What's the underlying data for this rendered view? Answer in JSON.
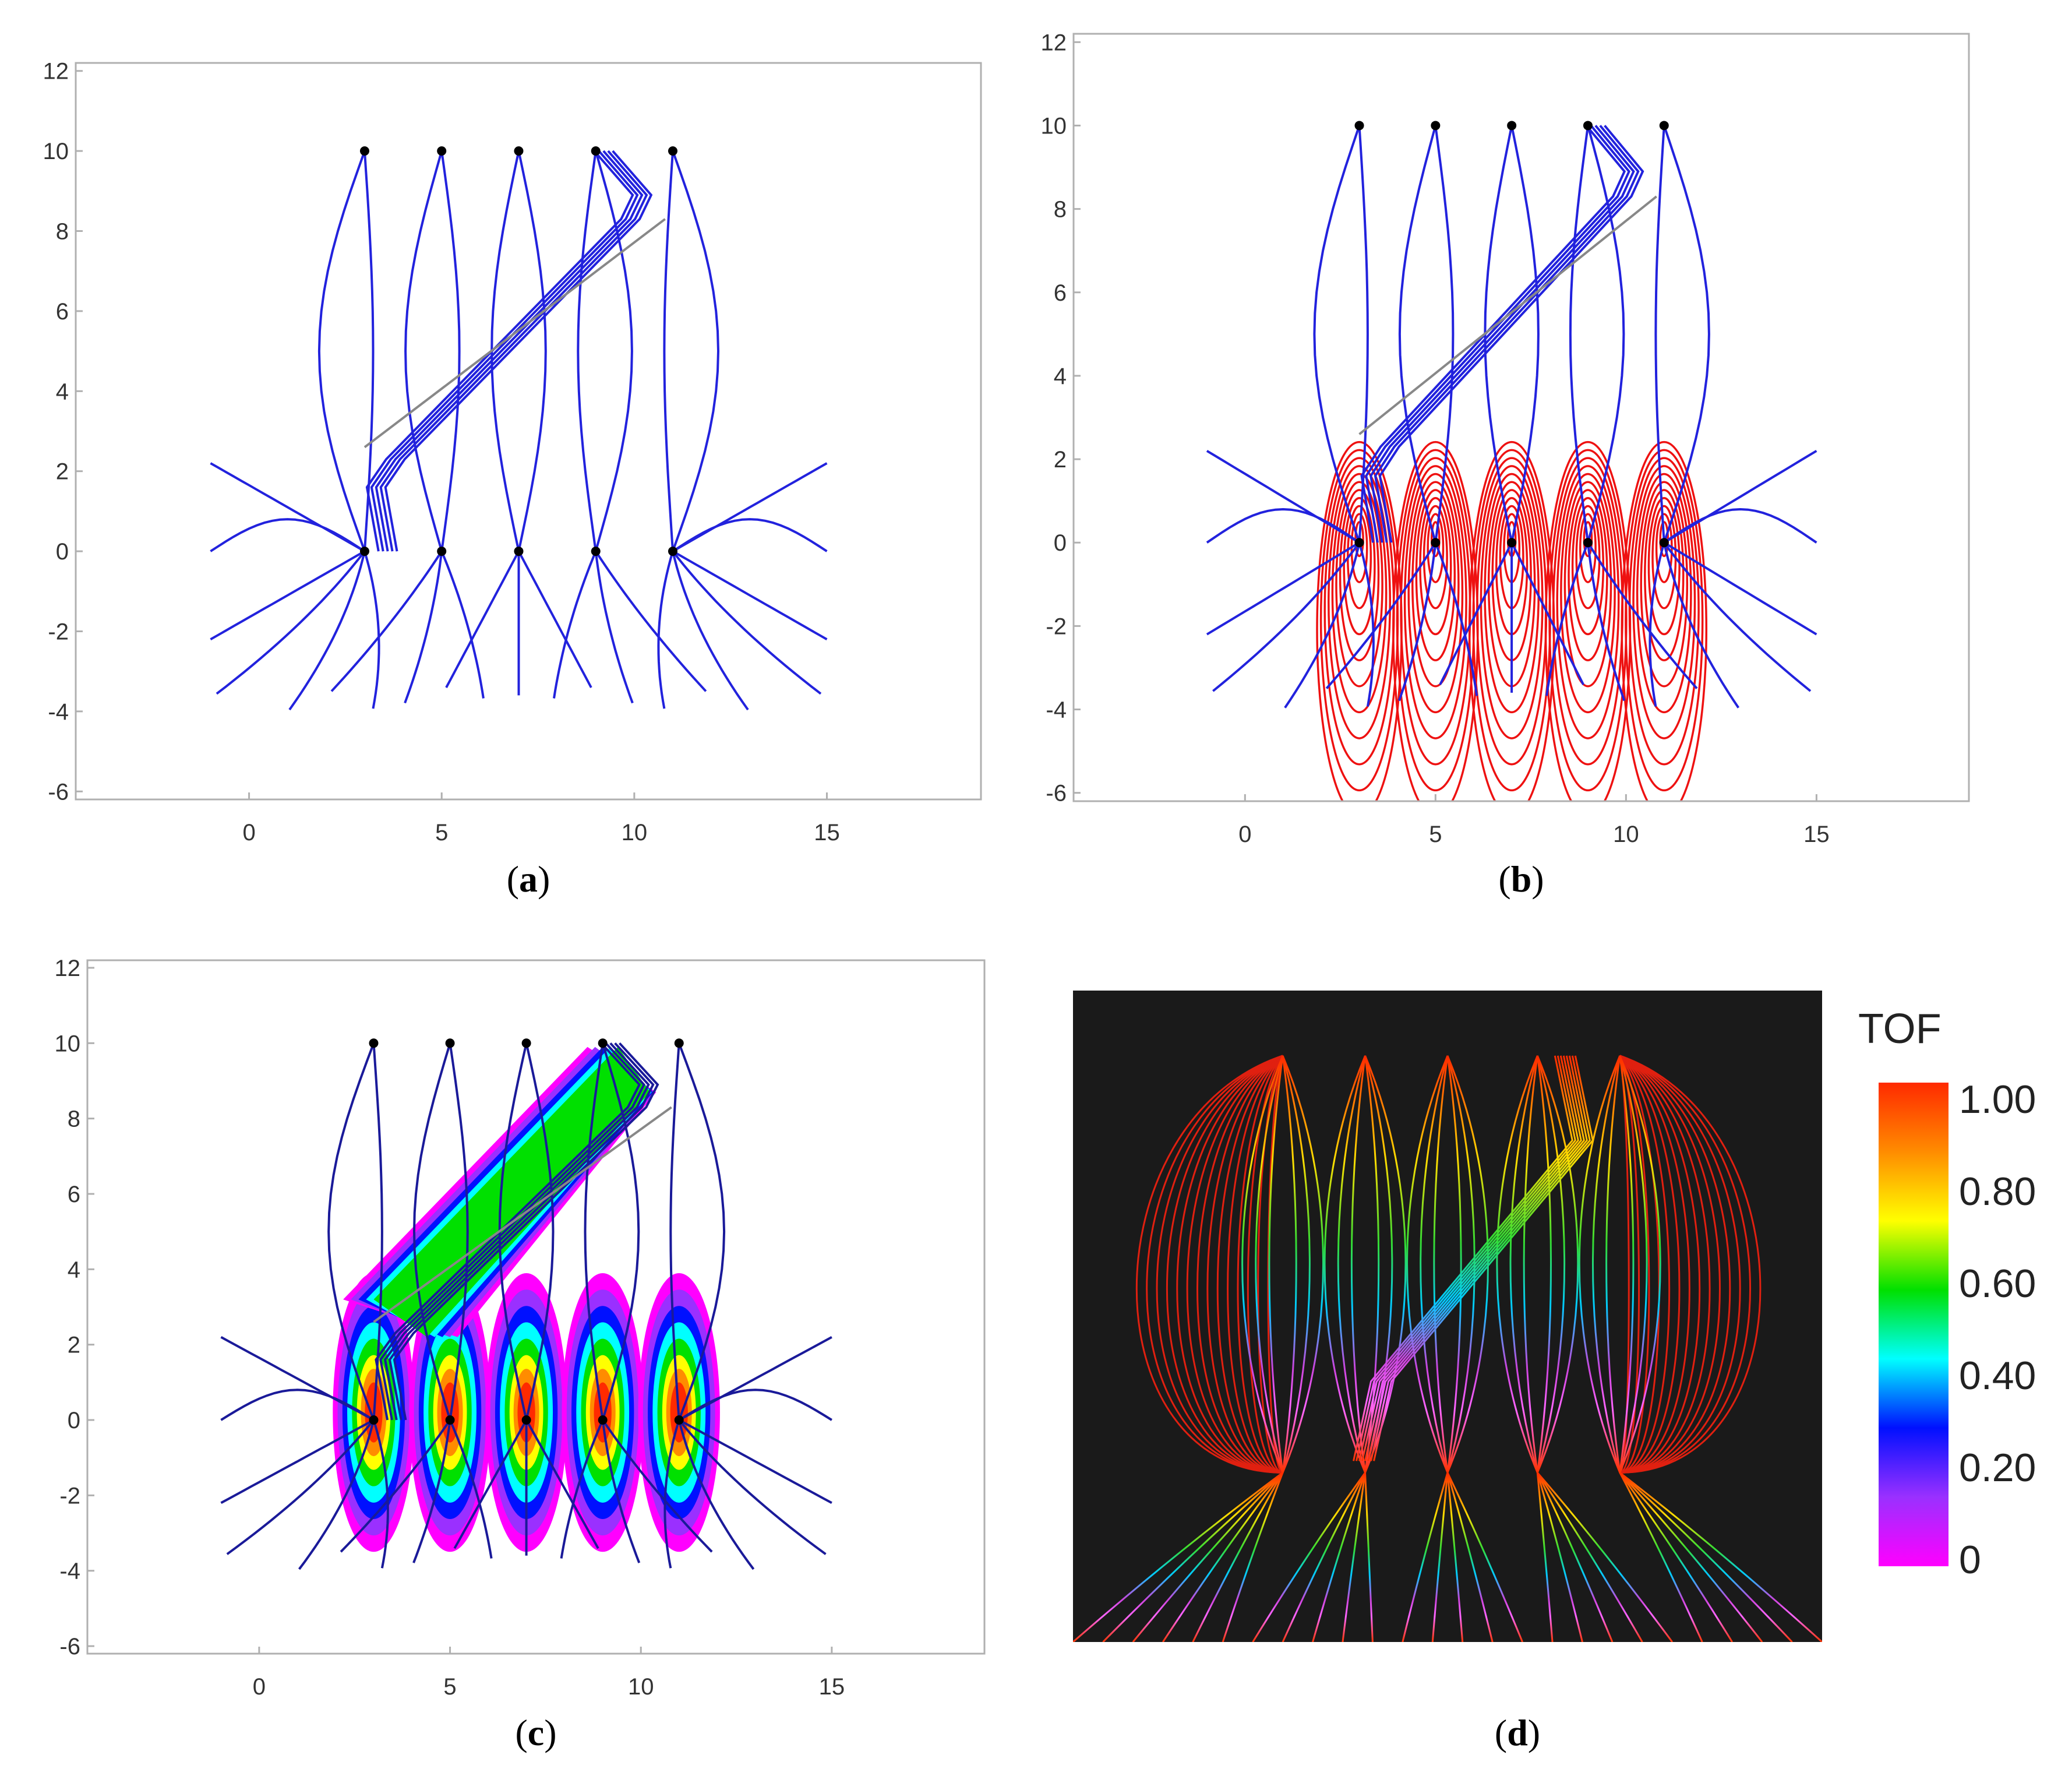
{
  "panels": [
    {
      "id": "a",
      "caption": "a",
      "type": "line",
      "xticks": [
        "0",
        "5",
        "10",
        "15"
      ],
      "yticks": [
        "12",
        "10",
        "8",
        "6",
        "4",
        "2",
        "0",
        "-2",
        "-4",
        "-6"
      ],
      "xlim": [
        -4.5,
        19
      ],
      "ylim": [
        -6.2,
        12.2
      ],
      "show_streamlines": true,
      "show_contours": false,
      "show_fill": false
    },
    {
      "id": "b",
      "caption": "b",
      "type": "line",
      "xticks": [
        "0",
        "5",
        "10",
        "15"
      ],
      "yticks": [
        "12",
        "10",
        "8",
        "6",
        "4",
        "2",
        "0",
        "-2",
        "-4",
        "-6"
      ],
      "xlim": [
        -4.5,
        19
      ],
      "ylim": [
        -6.2,
        12.2
      ],
      "show_streamlines": true,
      "show_contours": true,
      "show_fill": false
    },
    {
      "id": "c",
      "caption": "c",
      "type": "area",
      "xticks": [
        "0",
        "5",
        "10",
        "15"
      ],
      "yticks": [
        "12",
        "10",
        "8",
        "6",
        "4",
        "2",
        "0",
        "-2",
        "-4",
        "-6"
      ],
      "xlim": [
        -4.5,
        19
      ],
      "ylim": [
        -6.2,
        12.2
      ],
      "show_streamlines": true,
      "show_contours": false,
      "show_fill": true
    },
    {
      "id": "d",
      "caption": "d",
      "type": "line"
    }
  ],
  "colorbar": {
    "title": "TOF",
    "ticks": [
      "1.00",
      "0.80",
      "0.60",
      "0.40",
      "0.20",
      "0"
    ],
    "colors": [
      "#ff2a00",
      "#ff8c00",
      "#ffff00",
      "#00e000",
      "#00ffff",
      "#0010ff",
      "#9a30ff",
      "#ff00ff"
    ]
  },
  "chart_data": {
    "type": "line",
    "producers": [
      {
        "x": 3,
        "y": 0
      },
      {
        "x": 5,
        "y": 0
      },
      {
        "x": 7,
        "y": 0
      },
      {
        "x": 9,
        "y": 0
      },
      {
        "x": 11,
        "y": 0
      }
    ],
    "injectors": [
      {
        "x": 3,
        "y": 10
      },
      {
        "x": 5,
        "y": 10
      },
      {
        "x": 7,
        "y": 10
      },
      {
        "x": 9,
        "y": 10
      },
      {
        "x": 11,
        "y": 10
      }
    ],
    "fracture": {
      "x": [
        3,
        10.8
      ],
      "y": [
        2.6,
        8.3
      ]
    },
    "colors": {
      "streamline": "#2222dd",
      "tof_contour": "#ee1111",
      "fracture": "#888888"
    }
  }
}
